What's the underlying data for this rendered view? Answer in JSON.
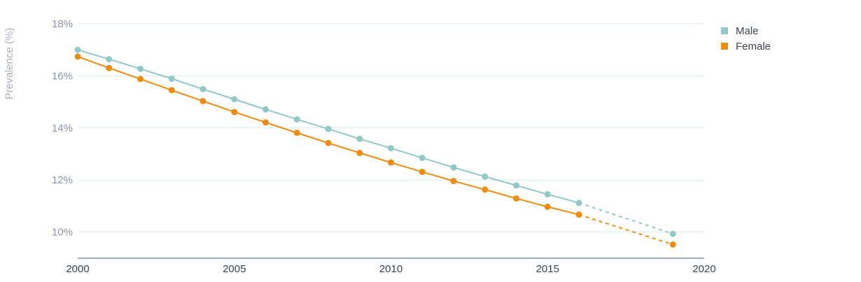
{
  "chart_data": {
    "type": "line",
    "title": "",
    "xlabel": "",
    "ylabel": "Prevalence (%)",
    "xlim": [
      2000,
      2020
    ],
    "ylim": [
      9,
      18
    ],
    "x_ticks": [
      "2000",
      "2005",
      "2010",
      "2015",
      "2020"
    ],
    "y_ticks": [
      "10%",
      "12%",
      "14%",
      "16%",
      "18%"
    ],
    "grid": true,
    "legend_position": "top-right",
    "colors": {
      "Male": "#92c9c8",
      "Female": "#ee8c0e"
    },
    "series": [
      {
        "name": "Male",
        "x": [
          2000,
          2001,
          2002,
          2003,
          2004,
          2005,
          2006,
          2007,
          2008,
          2009,
          2010,
          2011,
          2012,
          2013,
          2014,
          2015,
          2016,
          2019
        ],
        "values": [
          17.0,
          16.64,
          16.27,
          15.89,
          15.49,
          15.1,
          14.71,
          14.33,
          13.96,
          13.58,
          13.22,
          12.85,
          12.48,
          12.13,
          11.79,
          11.45,
          11.12,
          9.93
        ],
        "projected_from_index": 16
      },
      {
        "name": "Female",
        "x": [
          2000,
          2001,
          2002,
          2003,
          2004,
          2005,
          2006,
          2007,
          2008,
          2009,
          2010,
          2011,
          2012,
          2013,
          2014,
          2015,
          2016,
          2019
        ],
        "values": [
          16.74,
          16.3,
          15.88,
          15.45,
          15.03,
          14.61,
          14.21,
          13.81,
          13.42,
          13.04,
          12.67,
          12.31,
          11.96,
          11.63,
          11.29,
          10.97,
          10.67,
          9.52
        ],
        "projected_from_index": 16
      }
    ]
  }
}
